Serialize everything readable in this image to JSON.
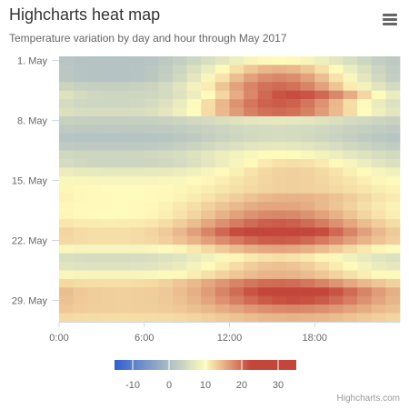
{
  "title": "Highcharts heat map",
  "subtitle": "Temperature variation by day and hour through May 2017",
  "menu_icon": "hamburger-menu-icon",
  "credits": "Highcharts.com",
  "chart_data": {
    "type": "heatmap",
    "title": "Highcharts heat map",
    "subtitle": "Temperature variation by day and hour through May 2017",
    "x_tick_labels": [
      "0:00",
      "6:00",
      "12:00",
      "18:00"
    ],
    "x_tick_hours": [
      0,
      6,
      12,
      18
    ],
    "x_range": [
      0,
      24
    ],
    "y_tick_labels": [
      "1. May",
      "8. May",
      "15. May",
      "22. May",
      "29. May"
    ],
    "y_tick_days": [
      1,
      8,
      15,
      22,
      29
    ],
    "y_range": [
      1,
      31
    ],
    "y_reversed": true,
    "colorbar": {
      "min": -15,
      "max": 35,
      "tick_labels": [
        "-10",
        "0",
        "10",
        "20",
        "30"
      ],
      "tick_values": [
        -10,
        0,
        10,
        20,
        30
      ],
      "stops": [
        {
          "value": -15,
          "color": "#3060cf"
        },
        {
          "value": 10,
          "color": "#fffbbc"
        },
        {
          "value": 22.5,
          "color": "#c4463a"
        },
        {
          "value": 35,
          "color": "#c4463a"
        }
      ]
    },
    "day_profiles": [
      {
        "day": 1,
        "min": 1,
        "max": 10,
        "peak_hour": 15
      },
      {
        "day": 2,
        "min": 1,
        "max": 15,
        "peak_hour": 15
      },
      {
        "day": 3,
        "min": 1,
        "max": 18,
        "peak_hour": 15
      },
      {
        "day": 4,
        "min": 3,
        "max": 20,
        "peak_hour": 15
      },
      {
        "day": 5,
        "min": 4,
        "max": 22,
        "peak_hour": 16
      },
      {
        "day": 6,
        "min": 4,
        "max": 21,
        "peak_hour": 15
      },
      {
        "day": 7,
        "min": 5,
        "max": 20,
        "peak_hour": 15
      },
      {
        "day": 8,
        "min": 3,
        "max": 7,
        "peak_hour": 15
      },
      {
        "day": 9,
        "min": 2,
        "max": 5,
        "peak_hour": 15
      },
      {
        "day": 10,
        "min": 1,
        "max": 5,
        "peak_hour": 15
      },
      {
        "day": 11,
        "min": 2,
        "max": 7,
        "peak_hour": 15
      },
      {
        "day": 12,
        "min": 4,
        "max": 10,
        "peak_hour": 15
      },
      {
        "day": 13,
        "min": 4,
        "max": 12,
        "peak_hour": 16
      },
      {
        "day": 14,
        "min": 7,
        "max": 13,
        "peak_hour": 16
      },
      {
        "day": 15,
        "min": 9,
        "max": 13,
        "peak_hour": 16
      },
      {
        "day": 16,
        "min": 10,
        "max": 13,
        "peak_hour": 16
      },
      {
        "day": 17,
        "min": 10,
        "max": 15,
        "peak_hour": 16
      },
      {
        "day": 18,
        "min": 10,
        "max": 16,
        "peak_hour": 15
      },
      {
        "day": 19,
        "min": 10,
        "max": 18,
        "peak_hour": 15
      },
      {
        "day": 20,
        "min": 11,
        "max": 21,
        "peak_hour": 15
      },
      {
        "day": 21,
        "min": 12,
        "max": 25,
        "peak_hour": 15
      },
      {
        "day": 22,
        "min": 12,
        "max": 21,
        "peak_hour": 15
      },
      {
        "day": 23,
        "min": 9,
        "max": 16,
        "peak_hour": 15
      },
      {
        "day": 24,
        "min": 5,
        "max": 12,
        "peak_hour": 15
      },
      {
        "day": 25,
        "min": 6,
        "max": 14,
        "peak_hour": 15
      },
      {
        "day": 26,
        "min": 9,
        "max": 15,
        "peak_hour": 15
      },
      {
        "day": 27,
        "min": 12,
        "max": 20,
        "peak_hour": 15
      },
      {
        "day": 28,
        "min": 13,
        "max": 24,
        "peak_hour": 16
      },
      {
        "day": 29,
        "min": 13,
        "max": 22,
        "peak_hour": 16
      },
      {
        "day": 30,
        "min": 13,
        "max": 18,
        "peak_hour": 16
      },
      {
        "day": 31,
        "min": 12,
        "max": 15,
        "peak_hour": 16
      }
    ]
  }
}
